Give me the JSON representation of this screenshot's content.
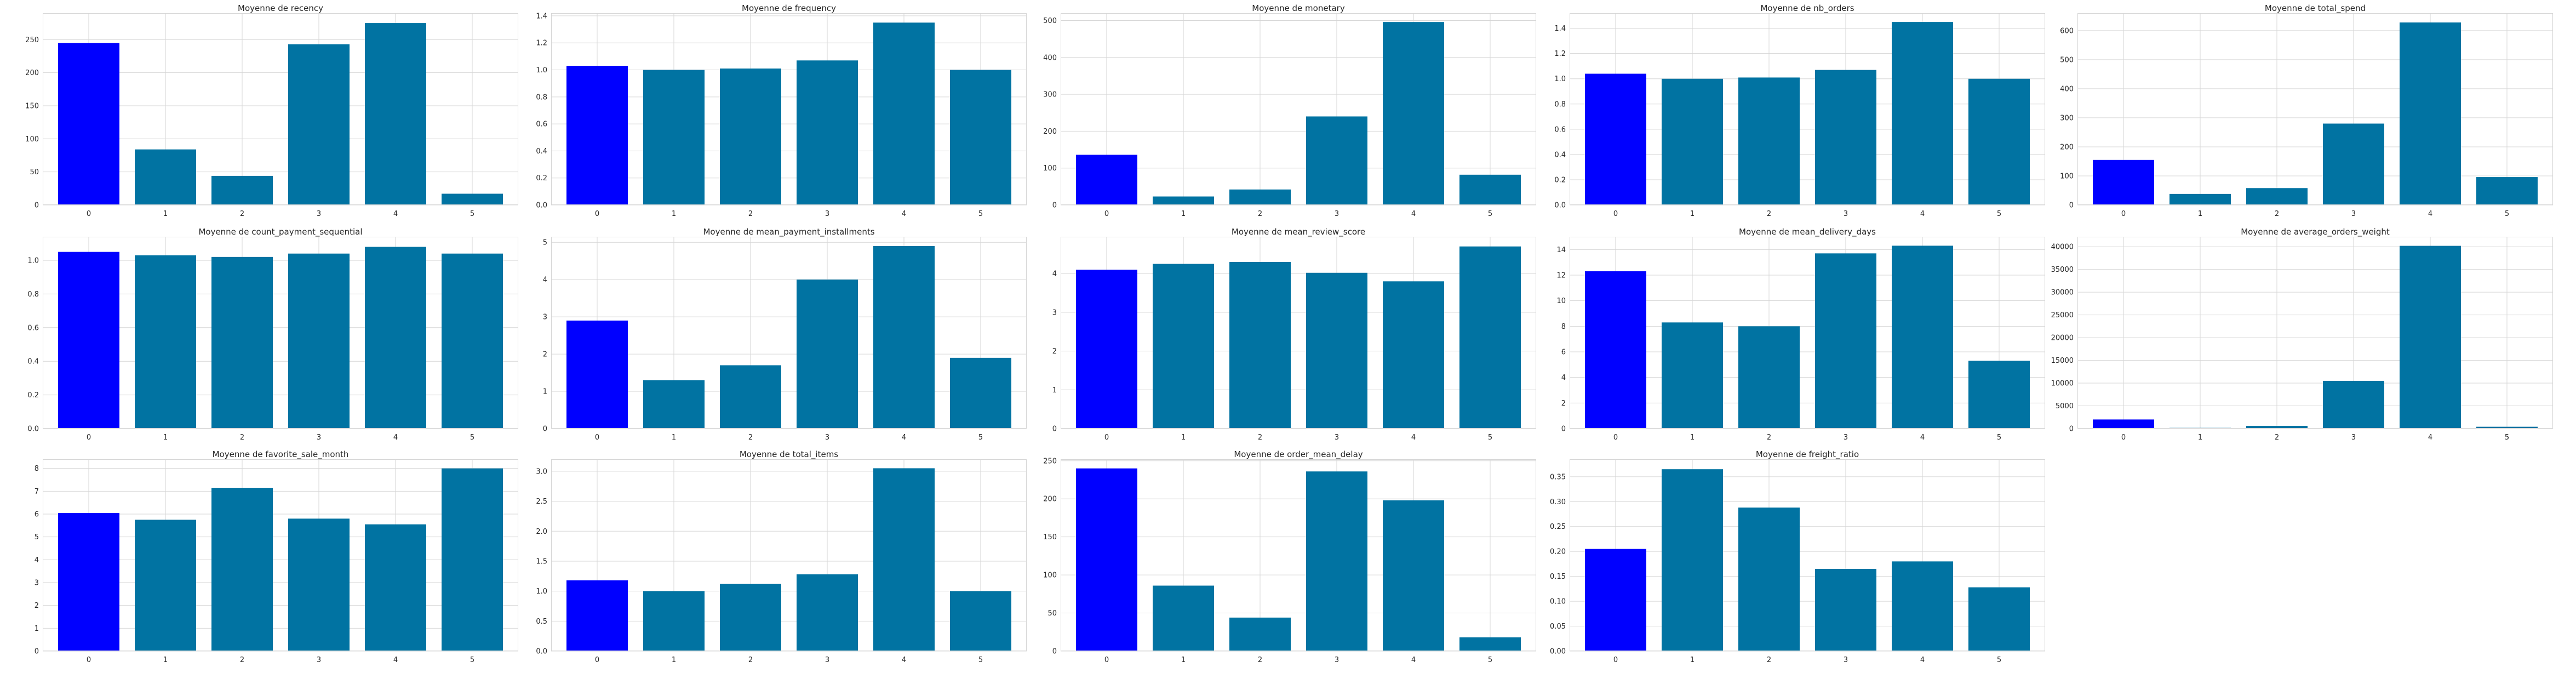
{
  "style": {
    "highlight_color": "#0000ff",
    "bar_color": "#0173a2",
    "grid_color": "#d6d6d6",
    "axes_background": "#ffffff",
    "tick_color": "#262626"
  },
  "chart_data": [
    {
      "type": "bar",
      "title": "Moyenne de recency",
      "categories": [
        "0",
        "1",
        "2",
        "3",
        "4",
        "5"
      ],
      "values": [
        245,
        84,
        44,
        243,
        275,
        17
      ],
      "ylim": [
        0,
        290
      ],
      "yticks": [
        0,
        50,
        100,
        150,
        200,
        250
      ],
      "ytick_labels": [
        "0",
        "50",
        "100",
        "150",
        "200",
        "250"
      ],
      "highlight_index": 0,
      "grid": true
    },
    {
      "type": "bar",
      "title": "Moyenne de frequency",
      "categories": [
        "0",
        "1",
        "2",
        "3",
        "4",
        "5"
      ],
      "values": [
        1.03,
        1.0,
        1.01,
        1.07,
        1.35,
        1.0
      ],
      "ylim": [
        0,
        1.42
      ],
      "yticks": [
        0,
        0.2,
        0.4,
        0.6,
        0.8,
        1.0,
        1.2,
        1.4
      ],
      "ytick_labels": [
        "0.0",
        "0.2",
        "0.4",
        "0.6",
        "0.8",
        "1.0",
        "1.2",
        "1.4"
      ],
      "highlight_index": 0,
      "grid": true
    },
    {
      "type": "bar",
      "title": "Moyenne de monetary",
      "categories": [
        "0",
        "1",
        "2",
        "3",
        "4",
        "5"
      ],
      "values": [
        136,
        23,
        42,
        240,
        496,
        82
      ],
      "ylim": [
        0,
        520
      ],
      "yticks": [
        0,
        100,
        200,
        300,
        400,
        500
      ],
      "ytick_labels": [
        "0",
        "100",
        "200",
        "300",
        "400",
        "500"
      ],
      "highlight_index": 0,
      "grid": true
    },
    {
      "type": "bar",
      "title": "Moyenne de nb_orders",
      "categories": [
        "0",
        "1",
        "2",
        "3",
        "4",
        "5"
      ],
      "values": [
        1.04,
        1.0,
        1.01,
        1.07,
        1.45,
        1.0
      ],
      "ylim": [
        0,
        1.52
      ],
      "yticks": [
        0,
        0.2,
        0.4,
        0.6,
        0.8,
        1.0,
        1.2,
        1.4
      ],
      "ytick_labels": [
        "0.0",
        "0.2",
        "0.4",
        "0.6",
        "0.8",
        "1.0",
        "1.2",
        "1.4"
      ],
      "highlight_index": 0,
      "grid": true
    },
    {
      "type": "bar",
      "title": "Moyenne de total_spend",
      "categories": [
        "0",
        "1",
        "2",
        "3",
        "4",
        "5"
      ],
      "values": [
        155,
        38,
        58,
        280,
        628,
        96
      ],
      "ylim": [
        0,
        660
      ],
      "yticks": [
        0,
        100,
        200,
        300,
        400,
        500,
        600
      ],
      "ytick_labels": [
        "0",
        "100",
        "200",
        "300",
        "400",
        "500",
        "600"
      ],
      "highlight_index": 0,
      "grid": true
    },
    {
      "type": "bar",
      "title": "Moyenne de count_payment_sequential",
      "categories": [
        "0",
        "1",
        "2",
        "3",
        "4",
        "5"
      ],
      "values": [
        1.05,
        1.03,
        1.02,
        1.04,
        1.08,
        1.04
      ],
      "ylim": [
        0,
        1.14
      ],
      "yticks": [
        0,
        0.2,
        0.4,
        0.6,
        0.8,
        1.0
      ],
      "ytick_labels": [
        "0.0",
        "0.2",
        "0.4",
        "0.6",
        "0.8",
        "1.0"
      ],
      "highlight_index": 0,
      "grid": true
    },
    {
      "type": "bar",
      "title": "Moyenne de mean_payment_installments",
      "categories": [
        "0",
        "1",
        "2",
        "3",
        "4",
        "5"
      ],
      "values": [
        2.9,
        1.3,
        1.7,
        4.0,
        4.9,
        1.9
      ],
      "ylim": [
        0,
        5.15
      ],
      "yticks": [
        0,
        1,
        2,
        3,
        4,
        5
      ],
      "ytick_labels": [
        "0",
        "1",
        "2",
        "3",
        "4",
        "5"
      ],
      "highlight_index": 0,
      "grid": true
    },
    {
      "type": "bar",
      "title": "Moyenne de mean_review_score",
      "categories": [
        "0",
        "1",
        "2",
        "3",
        "4",
        "5"
      ],
      "values": [
        4.1,
        4.25,
        4.3,
        4.02,
        3.8,
        4.7
      ],
      "ylim": [
        0,
        4.95
      ],
      "yticks": [
        0,
        1,
        2,
        3,
        4
      ],
      "ytick_labels": [
        "0",
        "1",
        "2",
        "3",
        "4"
      ],
      "highlight_index": 0,
      "grid": true
    },
    {
      "type": "bar",
      "title": "Moyenne de mean_delivery_days",
      "categories": [
        "0",
        "1",
        "2",
        "3",
        "4",
        "5"
      ],
      "values": [
        12.3,
        8.3,
        8.0,
        13.7,
        14.3,
        5.3
      ],
      "ylim": [
        0,
        15.0
      ],
      "yticks": [
        0,
        2,
        4,
        6,
        8,
        10,
        12,
        14
      ],
      "ytick_labels": [
        "0",
        "2",
        "4",
        "6",
        "8",
        "10",
        "12",
        "14"
      ],
      "highlight_index": 0,
      "grid": true
    },
    {
      "type": "bar",
      "title": "Moyenne de average_orders_weight",
      "categories": [
        "0",
        "1",
        "2",
        "3",
        "4",
        "5"
      ],
      "values": [
        2000,
        150,
        600,
        10500,
        40200,
        400
      ],
      "ylim": [
        0,
        42200
      ],
      "yticks": [
        0,
        5000,
        10000,
        15000,
        20000,
        25000,
        30000,
        35000,
        40000
      ],
      "ytick_labels": [
        "0",
        "5000",
        "10000",
        "15000",
        "20000",
        "25000",
        "30000",
        "35000",
        "40000"
      ],
      "highlight_index": 0,
      "grid": true
    },
    {
      "type": "bar",
      "title": "Moyenne de favorite_sale_month",
      "categories": [
        "0",
        "1",
        "2",
        "3",
        "4",
        "5"
      ],
      "values": [
        6.05,
        5.75,
        7.15,
        5.8,
        5.55,
        8.0
      ],
      "ylim": [
        0,
        8.4
      ],
      "yticks": [
        0,
        1,
        2,
        3,
        4,
        5,
        6,
        7,
        8
      ],
      "ytick_labels": [
        "0",
        "1",
        "2",
        "3",
        "4",
        "5",
        "6",
        "7",
        "8"
      ],
      "highlight_index": 0,
      "grid": true
    },
    {
      "type": "bar",
      "title": "Moyenne de total_items",
      "categories": [
        "0",
        "1",
        "2",
        "3",
        "4",
        "5"
      ],
      "values": [
        1.18,
        1.0,
        1.12,
        1.28,
        3.05,
        1.0
      ],
      "ylim": [
        0,
        3.2
      ],
      "yticks": [
        0,
        0.5,
        1.0,
        1.5,
        2.0,
        2.5,
        3.0
      ],
      "ytick_labels": [
        "0.0",
        "0.5",
        "1.0",
        "1.5",
        "2.0",
        "2.5",
        "3.0"
      ],
      "highlight_index": 0,
      "grid": true
    },
    {
      "type": "bar",
      "title": "Moyenne de order_mean_delay",
      "categories": [
        "0",
        "1",
        "2",
        "3",
        "4",
        "5"
      ],
      "values": [
        240,
        86,
        44,
        236,
        198,
        18
      ],
      "ylim": [
        0,
        252
      ],
      "yticks": [
        0,
        50,
        100,
        150,
        200,
        250
      ],
      "ytick_labels": [
        "0",
        "50",
        "100",
        "150",
        "200",
        "250"
      ],
      "highlight_index": 0,
      "grid": true
    },
    {
      "type": "bar",
      "title": "Moyenne de freight_ratio",
      "categories": [
        "0",
        "1",
        "2",
        "3",
        "4",
        "5"
      ],
      "values": [
        0.205,
        0.365,
        0.288,
        0.165,
        0.18,
        0.128
      ],
      "ylim": [
        0,
        0.385
      ],
      "yticks": [
        0,
        0.05,
        0.1,
        0.15,
        0.2,
        0.25,
        0.3,
        0.35
      ],
      "ytick_labels": [
        "0.00",
        "0.05",
        "0.10",
        "0.15",
        "0.20",
        "0.25",
        "0.30",
        "0.35"
      ],
      "highlight_index": 0,
      "grid": true
    }
  ]
}
